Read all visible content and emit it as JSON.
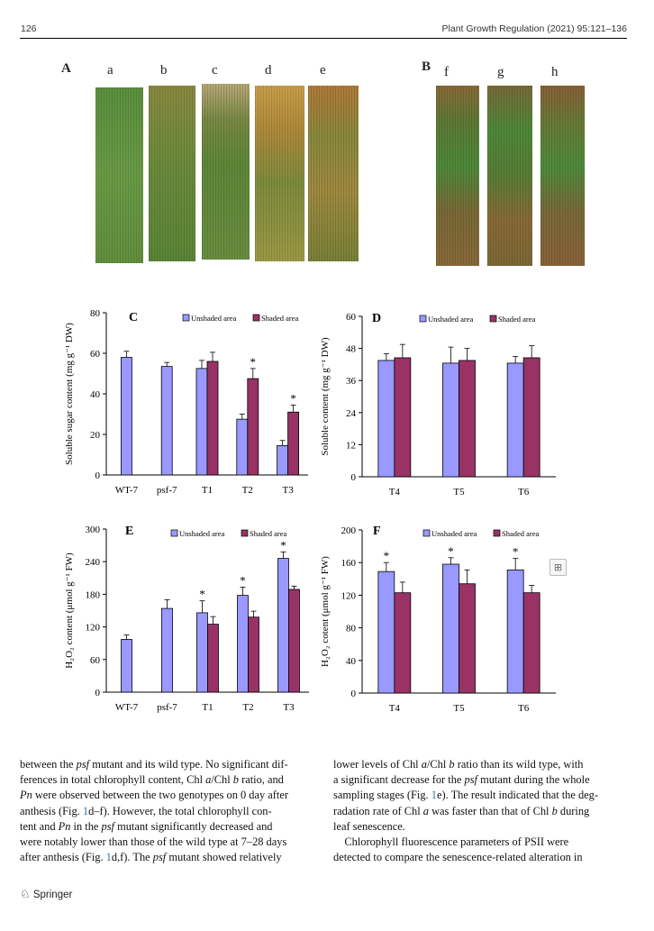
{
  "header": {
    "page_number": "126",
    "journal": "Plant Growth Regulation (2021) 95:121–136"
  },
  "photo_panels": {
    "A": {
      "label": "A",
      "leaves": [
        "a",
        "b",
        "c",
        "d",
        "e"
      ]
    },
    "B": {
      "label": "B",
      "leaves": [
        "f",
        "g",
        "h"
      ]
    }
  },
  "legend": {
    "unshaded": "Unshaded area",
    "shaded": "Shaded area"
  },
  "colors": {
    "unshaded": "#9999ff",
    "shaded": "#993366"
  },
  "chart_data": [
    {
      "panel": "C",
      "type": "bar",
      "ylabel": "Soluble sugar content (mg g⁻¹ DW)",
      "ylim": [
        0,
        80
      ],
      "yticks": [
        "0",
        "20",
        "40",
        "60",
        "80"
      ],
      "categories": [
        "WT-7",
        "psf-7",
        "T1",
        "T2",
        "T3"
      ],
      "series": [
        {
          "name": "Unshaded area",
          "values": [
            58,
            53.5,
            52.5,
            27.5,
            14.5
          ],
          "errors": [
            3,
            2,
            4,
            2.5,
            2.5
          ]
        },
        {
          "name": "Shaded area",
          "values": [
            null,
            null,
            56,
            47.5,
            31
          ],
          "errors": [
            null,
            null,
            4.5,
            5,
            3.5
          ]
        }
      ],
      "significance": [
        "",
        "",
        "",
        "*",
        "*"
      ]
    },
    {
      "panel": "D",
      "type": "bar",
      "ylabel": "Soluble content (mg g⁻¹ DW)",
      "ylim": [
        0,
        60
      ],
      "yticks": [
        "0",
        "12",
        "24",
        "36",
        "48",
        "60"
      ],
      "categories": [
        "T4",
        "T5",
        "T6"
      ],
      "series": [
        {
          "name": "Unshaded area",
          "values": [
            43.5,
            42.5,
            42.5
          ],
          "errors": [
            2.5,
            6,
            2.5
          ]
        },
        {
          "name": "Shaded area",
          "values": [
            44.5,
            43.5,
            44.5
          ],
          "errors": [
            5,
            4.5,
            4.5
          ]
        }
      ],
      "significance": [
        "",
        "",
        ""
      ]
    },
    {
      "panel": "E",
      "type": "bar",
      "ylabel": "H₂O₂ content (μmol g⁻¹ FW)",
      "ylim": [
        0,
        300
      ],
      "yticks": [
        "0",
        "60",
        "120",
        "180",
        "240",
        "300"
      ],
      "categories": [
        "WT-7",
        "psf-7",
        "T1",
        "T2",
        "T3"
      ],
      "series": [
        {
          "name": "Unshaded area",
          "values": [
            97,
            154,
            146,
            178,
            246
          ],
          "errors": [
            8,
            16,
            22,
            15,
            12
          ]
        },
        {
          "name": "Shaded area",
          "values": [
            null,
            null,
            125,
            138,
            189
          ],
          "errors": [
            null,
            null,
            14,
            11,
            6
          ]
        }
      ],
      "significance": [
        "",
        "",
        "*",
        "*",
        "*"
      ]
    },
    {
      "panel": "F",
      "type": "bar",
      "ylabel": "H₂O₂ cotent (μmol g⁻¹ FW)",
      "ylim": [
        0,
        200
      ],
      "yticks": [
        "0",
        "40",
        "80",
        "120",
        "160",
        "200"
      ],
      "categories": [
        "T4",
        "T5",
        "T6"
      ],
      "series": [
        {
          "name": "Unshaded area",
          "values": [
            149,
            158,
            151
          ],
          "errors": [
            11,
            8,
            14
          ]
        },
        {
          "name": "Shaded area",
          "values": [
            123,
            134,
            123
          ],
          "errors": [
            13,
            17,
            9
          ]
        }
      ],
      "significance": [
        "*",
        "*",
        "*"
      ]
    }
  ],
  "text": {
    "left_col": [
      [
        {
          "t": "between the "
        },
        {
          "t": "psf",
          "i": true
        },
        {
          "t": " mutant and its wild type. No significant dif-"
        }
      ],
      [
        {
          "t": "ferences in total chlorophyll content, Chl "
        },
        {
          "t": "a",
          "i": true
        },
        {
          "t": "/Chl "
        },
        {
          "t": "b",
          "i": true
        },
        {
          "t": " ratio, and"
        }
      ],
      [
        {
          "t": "Pn",
          "i": true
        },
        {
          "t": " were observed between the two genotypes on 0 day after"
        }
      ],
      [
        {
          "t": "anthesis (Fig. "
        },
        {
          "t": "1",
          "r": true
        },
        {
          "t": "d–f). However, the total chlorophyll con-"
        }
      ],
      [
        {
          "t": "tent and "
        },
        {
          "t": "Pn",
          "i": true
        },
        {
          "t": " in the "
        },
        {
          "t": "psf",
          "i": true
        },
        {
          "t": " mutant significantly decreased and"
        }
      ],
      [
        {
          "t": "were notably lower than those of the wild type at 7–28 days"
        }
      ],
      [
        {
          "t": "after anthesis (Fig. "
        },
        {
          "t": "1",
          "r": true
        },
        {
          "t": "d,f). The "
        },
        {
          "t": "psf",
          "i": true
        },
        {
          "t": " mutant showed relatively"
        }
      ]
    ],
    "right_col": [
      [
        {
          "t": "lower levels of Chl "
        },
        {
          "t": "a",
          "i": true
        },
        {
          "t": "/Chl "
        },
        {
          "t": "b",
          "i": true
        },
        {
          "t": " ratio than its wild type, with"
        }
      ],
      [
        {
          "t": "a significant decrease for the "
        },
        {
          "t": "psf",
          "i": true
        },
        {
          "t": " mutant during the whole"
        }
      ],
      [
        {
          "t": "sampling stages (Fig. "
        },
        {
          "t": "1",
          "r": true
        },
        {
          "t": "e). The result indicated that the deg-"
        }
      ],
      [
        {
          "t": "radation rate of Chl "
        },
        {
          "t": "a",
          "i": true
        },
        {
          "t": " was faster than that of Chl "
        },
        {
          "t": "b",
          "i": true
        },
        {
          "t": " during"
        }
      ],
      [
        {
          "t": "leaf senescence."
        }
      ],
      [
        {
          "t": "    Chlorophyll fluorescence parameters of PSII were"
        }
      ],
      [
        {
          "t": "detected to compare the senescence-related alteration in"
        }
      ]
    ]
  },
  "footer": {
    "publisher": "Springer"
  }
}
